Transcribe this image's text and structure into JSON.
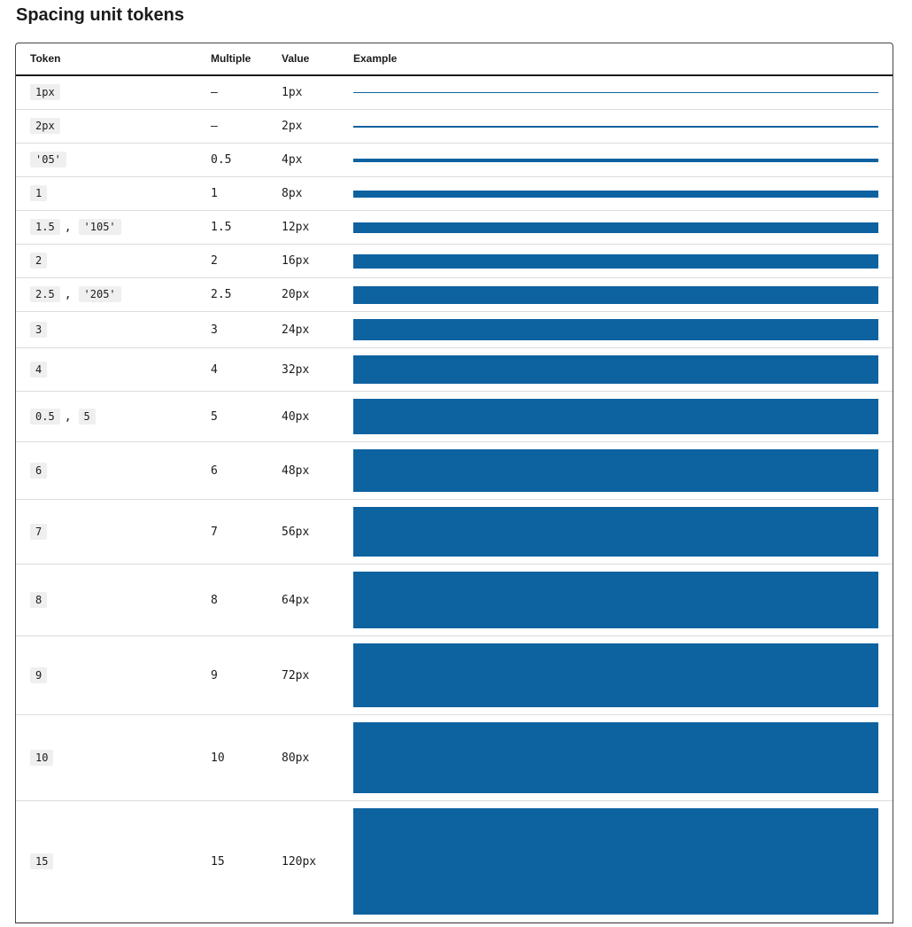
{
  "header": {
    "title": "Spacing unit tokens"
  },
  "table": {
    "columns": [
      "Token",
      "Multiple",
      "Value",
      "Example"
    ],
    "token_separator": ",",
    "rows": [
      {
        "tokens": [
          "1px"
        ],
        "multiple": "–",
        "value": "1px"
      },
      {
        "tokens": [
          "2px"
        ],
        "multiple": "–",
        "value": "2px"
      },
      {
        "tokens": [
          "'05'"
        ],
        "multiple": "0.5",
        "value": "4px"
      },
      {
        "tokens": [
          "1"
        ],
        "multiple": "1",
        "value": "8px"
      },
      {
        "tokens": [
          "1.5",
          "'105'"
        ],
        "multiple": "1.5",
        "value": "12px"
      },
      {
        "tokens": [
          "2"
        ],
        "multiple": "2",
        "value": "16px"
      },
      {
        "tokens": [
          "2.5",
          "'205'"
        ],
        "multiple": "2.5",
        "value": "20px"
      },
      {
        "tokens": [
          "3"
        ],
        "multiple": "3",
        "value": "24px"
      },
      {
        "tokens": [
          "4"
        ],
        "multiple": "4",
        "value": "32px"
      },
      {
        "tokens": [
          "0.5",
          "5"
        ],
        "multiple": "5",
        "value": "40px"
      },
      {
        "tokens": [
          "6"
        ],
        "multiple": "6",
        "value": "48px"
      },
      {
        "tokens": [
          "7"
        ],
        "multiple": "7",
        "value": "56px"
      },
      {
        "tokens": [
          "8"
        ],
        "multiple": "8",
        "value": "64px"
      },
      {
        "tokens": [
          "9"
        ],
        "multiple": "9",
        "value": "72px"
      },
      {
        "tokens": [
          "10"
        ],
        "multiple": "10",
        "value": "80px"
      },
      {
        "tokens": [
          "15"
        ],
        "multiple": "15",
        "value": "120px"
      }
    ]
  }
}
